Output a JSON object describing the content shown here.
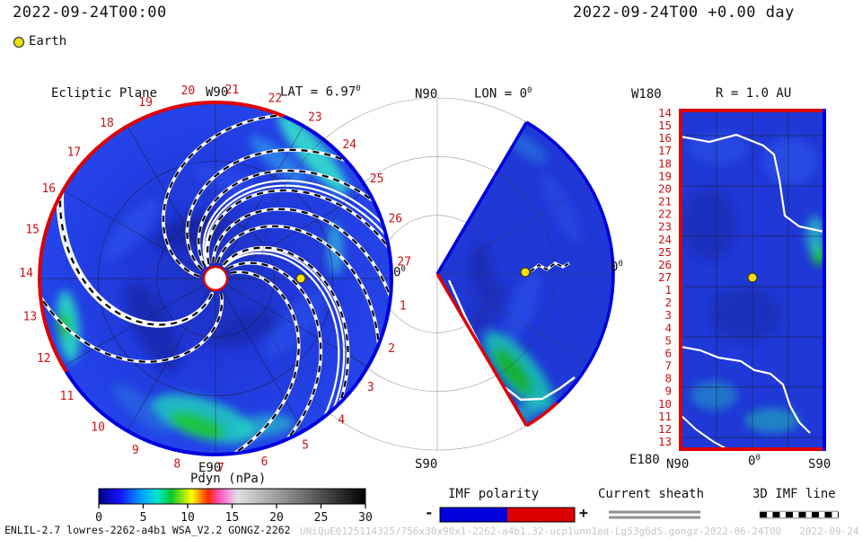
{
  "header": {
    "left_timestamp": "2022-09-24T00:00",
    "right_timestamp": "2022-09-24T00 +0.00 day",
    "earth_label": "Earth"
  },
  "panels": {
    "ecliptic": {
      "title": "Ecliptic Plane",
      "west_label": "W90",
      "east_label": "E90",
      "lat_label": "LAT = 6.97",
      "zero_label": "0",
      "deg": "0"
    },
    "meridional": {
      "north_label": "N90",
      "south_label": "S90",
      "lon_label": "LON = 0",
      "zero_label": "0",
      "deg": "0"
    },
    "radial": {
      "west_label": "W180",
      "east_label": "E180",
      "r_label": "R = 1.0 AU",
      "tick_n": "N90",
      "tick_zero": "0",
      "tick_s": "S90",
      "deg": "0"
    }
  },
  "colorbar": {
    "title": "Pdyn (nPa)",
    "min": 0,
    "max": 30,
    "ticks": [
      0,
      5,
      10,
      15,
      20,
      25,
      30
    ],
    "stops": [
      [
        0.0,
        "#000085"
      ],
      [
        0.08,
        "#1414ff"
      ],
      [
        0.16,
        "#00a0ff"
      ],
      [
        0.22,
        "#00e8d0"
      ],
      [
        0.27,
        "#00c830"
      ],
      [
        0.33,
        "#c8f000"
      ],
      [
        0.35,
        "#ffff00"
      ],
      [
        0.38,
        "#ff9000"
      ],
      [
        0.41,
        "#ff2800"
      ],
      [
        0.45,
        "#ff50b4"
      ],
      [
        0.49,
        "#f0a0e0"
      ],
      [
        0.52,
        "#e0e0e0"
      ],
      [
        0.75,
        "#787878"
      ],
      [
        1.0,
        "#000000"
      ]
    ]
  },
  "legend": {
    "imf_title": "IMF polarity",
    "minus": "-",
    "plus": "+",
    "imf_neg_color": "#0000dd",
    "imf_pos_color": "#dd0000",
    "sheath_title": "Current sheath",
    "imfline_title": "3D IMF line"
  },
  "footer": {
    "model_info": "ENLIL-2.7 lowres-2262-a4b1 WSA_V2.2 GONGZ-2262",
    "watermark": "UNiQuE0125114325/756x30x90x1-2262-a4b1.32-ucp1unn1ed-Lg53g6d5.gongz-2022-06-24T00   2022-09-24"
  },
  "chart_data": {
    "type": "heatmap",
    "model": "WSA-ENLIL solar wind heliosphere simulation",
    "quantity": "Dynamic pressure Pdyn (nPa)",
    "value_range": [
      0,
      30
    ],
    "timestamp": "2022-09-24T00:00",
    "forecast_offset_days": 0.0,
    "earth_lat_deg": 6.97,
    "ecliptic": {
      "day_labels": [
        1,
        2,
        3,
        4,
        5,
        6,
        7,
        8,
        9,
        10,
        11,
        12,
        13,
        14,
        15,
        16,
        17,
        18,
        19,
        20,
        21,
        22,
        23,
        24,
        25,
        26,
        27
      ],
      "label_angle_offset_deg": 5,
      "label_step_deg": 13.3333,
      "polarity_red_arc_deg": [
        67,
        212
      ],
      "earth": {
        "angle_deg": 0,
        "r_frac": 0.485
      },
      "imf_line_exit_angles_deg": [
        -84,
        -66,
        -45,
        -22,
        -6,
        10,
        26,
        42,
        68,
        152,
        186
      ],
      "current_sheet_exit_angles_deg": [
        -52,
        14,
        150
      ],
      "spiral_sweep_deg": 115
    },
    "meridional": {
      "lon_deg": 0,
      "lat_span_deg": 59.5,
      "earth": {
        "angle_deg": 0,
        "r_frac": 0.5
      }
    },
    "radial_surface": {
      "r_au": 1.0,
      "day_labels": [
        14,
        15,
        16,
        17,
        18,
        19,
        20,
        21,
        22,
        23,
        24,
        25,
        26,
        27,
        1,
        2,
        3,
        4,
        5,
        6,
        7,
        8,
        9,
        10,
        11,
        12,
        13
      ],
      "earth": {
        "day": 27,
        "lon_deg": 0
      }
    }
  }
}
